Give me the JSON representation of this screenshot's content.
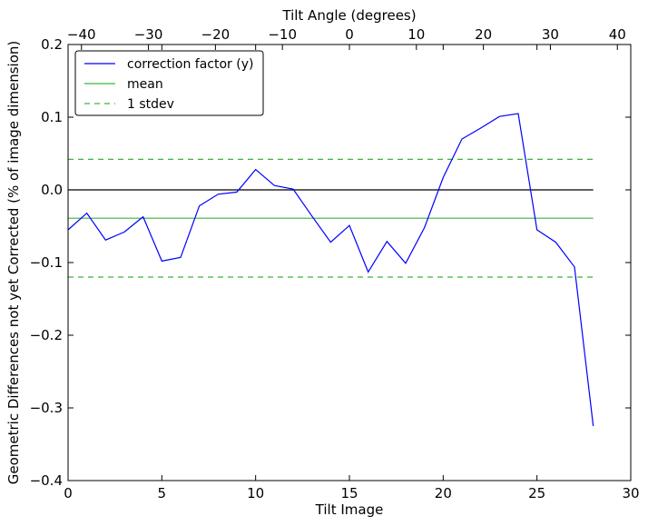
{
  "chart_data": {
    "type": "line",
    "xlabel": "Tilt Image",
    "ylabel": "Geometric Differences not yet Corrected (% of image dimension)",
    "top_xlabel": "Tilt Angle (degrees)",
    "xlim": [
      0,
      30
    ],
    "ylim": [
      -0.4,
      0.2
    ],
    "top_xlim": [
      -42,
      42
    ],
    "x_ticks": [
      0,
      5,
      10,
      15,
      20,
      25,
      30
    ],
    "x_tick_labels": [
      "0",
      "5",
      "10",
      "15",
      "20",
      "25",
      "30"
    ],
    "y_ticks": [
      -0.4,
      -0.3,
      -0.2,
      -0.1,
      0.0,
      0.1,
      0.2
    ],
    "y_tick_labels": [
      "−0.4",
      "−0.3",
      "−0.2",
      "−0.1",
      "0.0",
      "0.1",
      "0.2"
    ],
    "top_ticks": [
      -40,
      -30,
      -20,
      -10,
      0,
      10,
      20,
      30,
      40
    ],
    "top_tick_labels": [
      "−40",
      "−30",
      "−20",
      "−10",
      "0",
      "10",
      "20",
      "30",
      "40"
    ],
    "grid": false,
    "legend_position": "top-left",
    "series": [
      {
        "name": "correction factor (y)",
        "color": "#0000ff",
        "style": "solid",
        "x": [
          0,
          1,
          2,
          3,
          4,
          5,
          6,
          7,
          8,
          9,
          10,
          11,
          12,
          13,
          14,
          15,
          16,
          17,
          18,
          19,
          20,
          21,
          22,
          23,
          24,
          25,
          26,
          27,
          28
        ],
        "y": [
          -0.055,
          -0.032,
          -0.069,
          -0.058,
          -0.037,
          -0.098,
          -0.093,
          -0.022,
          -0.006,
          -0.003,
          0.028,
          0.006,
          0.001,
          -0.036,
          -0.072,
          -0.049,
          -0.113,
          -0.071,
          -0.101,
          -0.052,
          0.017,
          0.07,
          0.085,
          0.101,
          0.105,
          -0.055,
          -0.072,
          -0.106,
          -0.325
        ]
      },
      {
        "name": "mean",
        "color": "#3cb43c",
        "style": "solid",
        "x": [
          0,
          28
        ],
        "y": [
          -0.039,
          -0.039
        ]
      },
      {
        "name": "1 stdev",
        "color": "#3cb43c",
        "style": "dashed",
        "x": [
          0,
          28
        ],
        "y": [
          0.042,
          0.042
        ]
      },
      {
        "name": "",
        "color": "#3cb43c",
        "style": "dashed",
        "x": [
          0,
          28
        ],
        "y": [
          -0.12,
          -0.12
        ]
      },
      {
        "name": "",
        "color": "#000000",
        "style": "solid",
        "x": [
          0,
          28
        ],
        "y": [
          0.0,
          0.0
        ]
      }
    ],
    "legend": [
      "correction factor (y)",
      "mean",
      "1 stdev"
    ]
  }
}
